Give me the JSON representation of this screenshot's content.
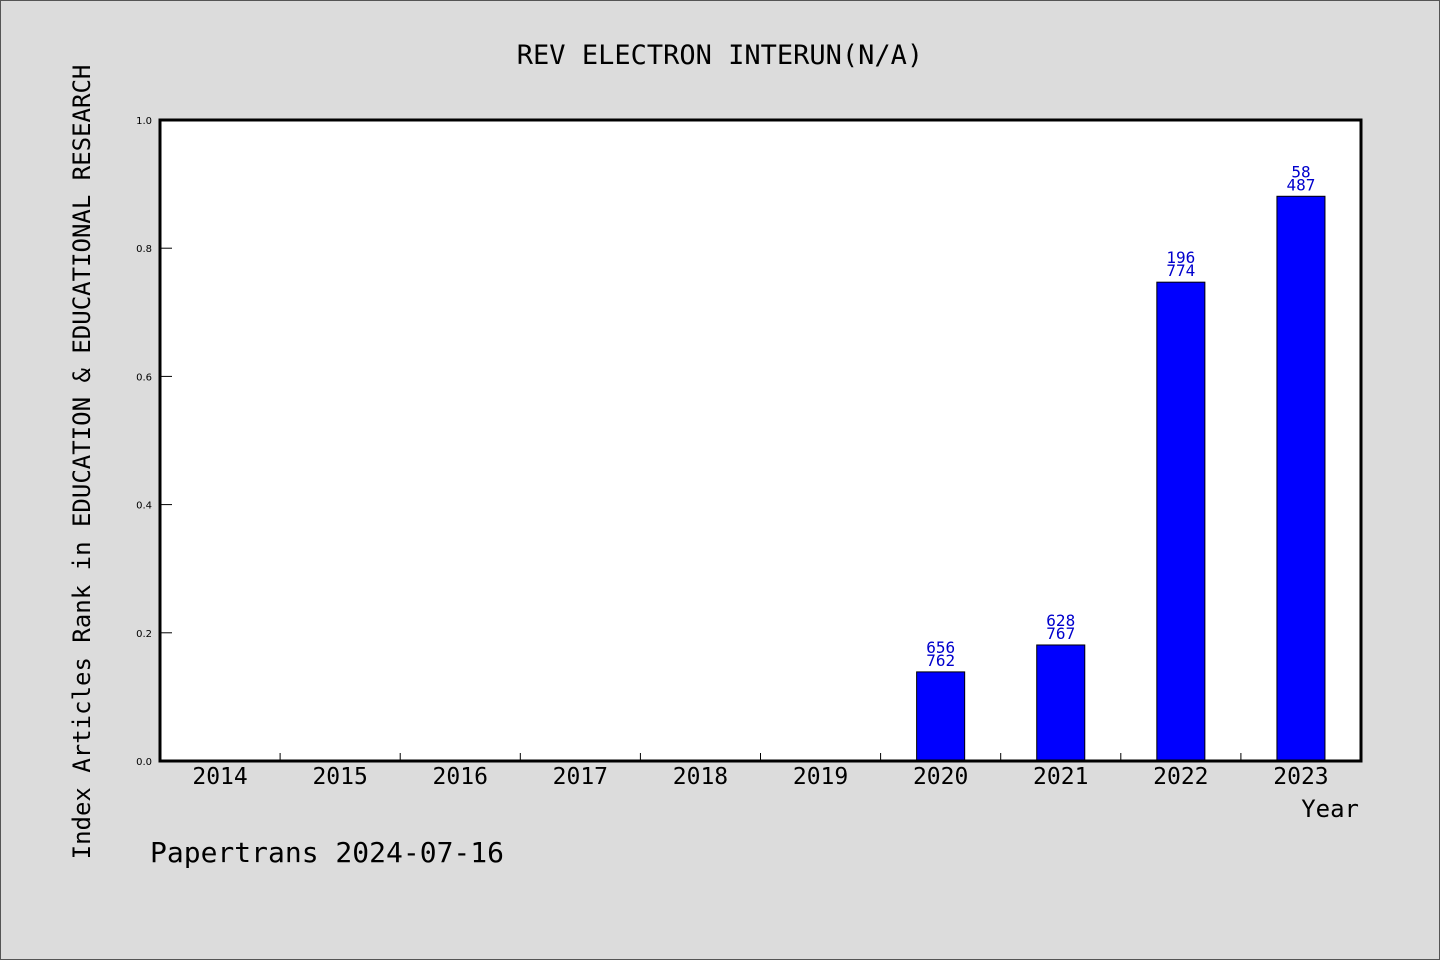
{
  "chart_data": {
    "type": "bar",
    "title": "REV ELECTRON INTERUN(N/A)",
    "xlabel": "Year",
    "ylabel": "Index Articles Rank in EDUCATION & EDUCATIONAL RESEARCH",
    "categories": [
      "2014",
      "2015",
      "2016",
      "2017",
      "2018",
      "2019",
      "2020",
      "2021",
      "2022",
      "2023"
    ],
    "values": [
      0,
      0,
      0,
      0,
      0,
      0,
      0.139,
      0.181,
      0.747,
      0.881
    ],
    "labels": [
      null,
      null,
      null,
      null,
      null,
      null,
      [
        "656",
        "762"
      ],
      [
        "628",
        "767"
      ],
      [
        "196",
        "774"
      ],
      [
        "58",
        "487"
      ]
    ],
    "ylim": [
      0,
      1.0
    ],
    "yticks": [
      "0.0",
      "0.2",
      "0.4",
      "0.6",
      "0.8",
      "1.0"
    ],
    "grid": false,
    "colors": {
      "bar": "#0000ff",
      "label": "#0000cc",
      "background": "#dcdcdc",
      "plot_background": "#ffffff"
    }
  },
  "footer": {
    "text": "Papertrans 2024-07-16"
  }
}
